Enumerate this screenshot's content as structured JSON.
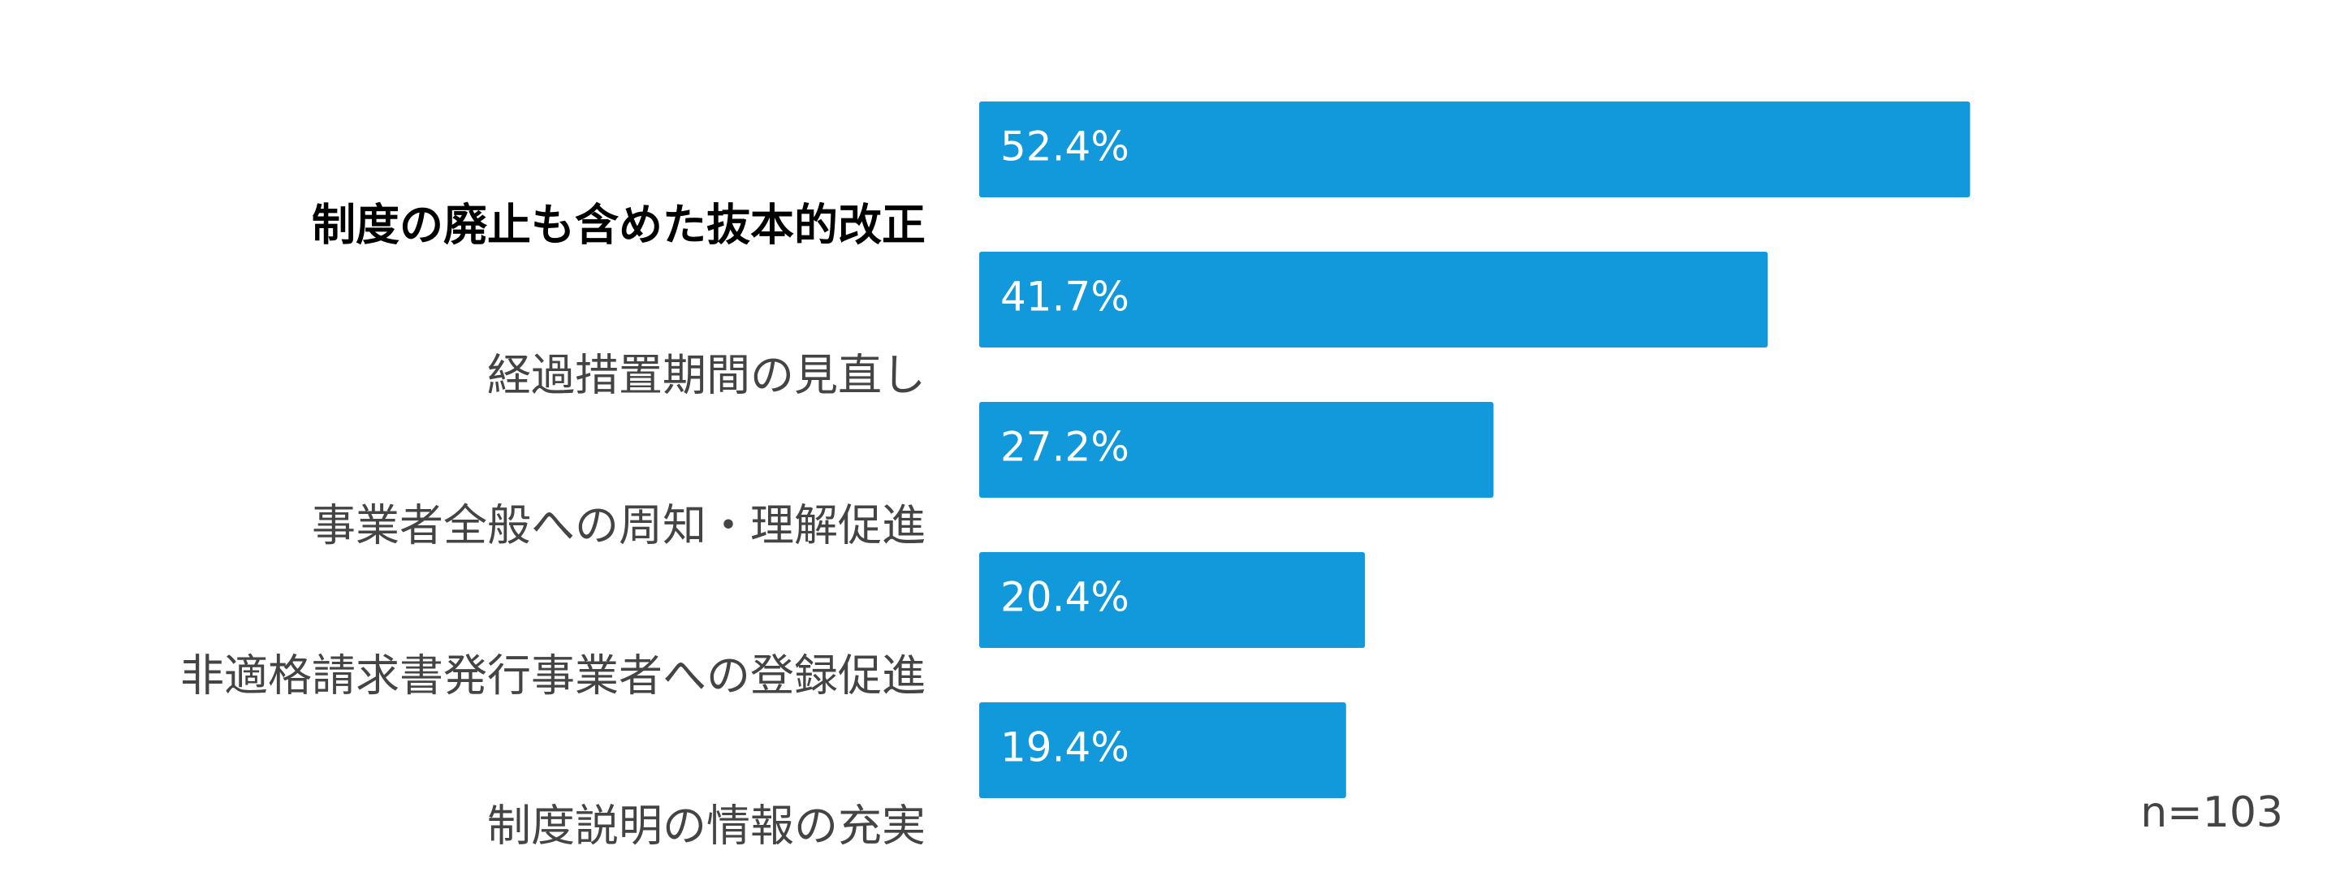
{
  "chart_data": {
    "type": "hbar",
    "categories": [
      "制度の廃止も含めた抜本的改正",
      "経過措置期間の見直し",
      "事業者全般への周知・理解促進",
      "非適格請求書発行事業者への登録促進",
      "制度説明の情報の充実"
    ],
    "values": [
      52.4,
      41.7,
      27.2,
      20.4,
      19.4
    ],
    "value_labels": [
      "52.4%",
      "41.7%",
      "27.2%",
      "20.4%",
      "19.4%"
    ],
    "color": "#1199db",
    "note": "n=103"
  }
}
